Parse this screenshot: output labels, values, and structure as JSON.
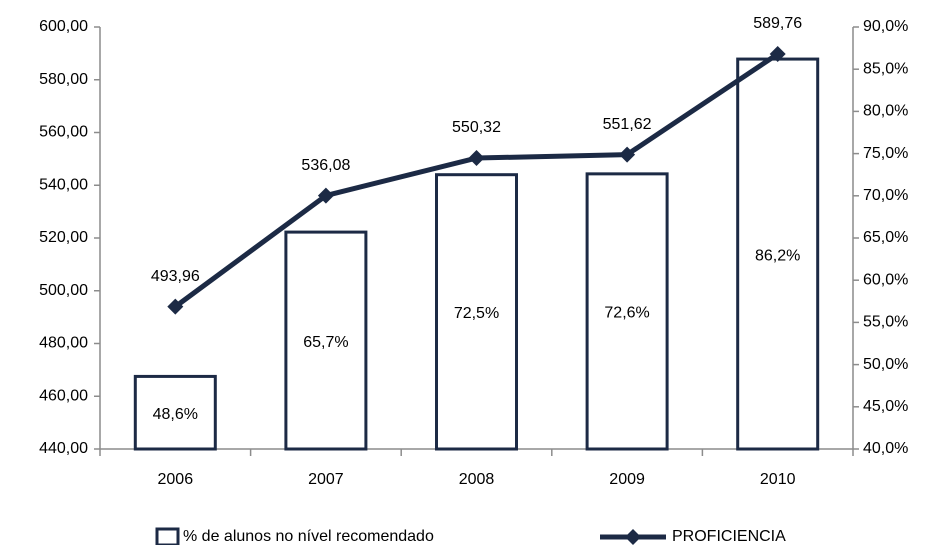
{
  "chart_data": {
    "type": "combo",
    "categories": [
      "2006",
      "2007",
      "2008",
      "2009",
      "2010"
    ],
    "series": [
      {
        "name": "% de alunos no nível recomendado",
        "type": "bar",
        "axis": "y2",
        "color": "#1c2a45",
        "values": [
          48.6,
          65.7,
          72.5,
          72.6,
          86.2
        ],
        "value_labels": [
          "48,6%",
          "65,7%",
          "72,5%",
          "72,6%",
          "86,2%"
        ]
      },
      {
        "name": "PROFICIENCIA",
        "type": "line",
        "axis": "y",
        "color": "#1c2a45",
        "values": [
          493.96,
          536.08,
          550.32,
          551.62,
          589.76
        ],
        "value_labels": [
          "493,96",
          "536,08",
          "550,32",
          "551,62",
          "589,76"
        ]
      }
    ],
    "ylim": [
      440,
      600
    ],
    "yticks": [
      {
        "value": 440,
        "label": "440,00"
      },
      {
        "value": 460,
        "label": "460,00"
      },
      {
        "value": 480,
        "label": "480,00"
      },
      {
        "value": 500,
        "label": "500,00"
      },
      {
        "value": 520,
        "label": "520,00"
      },
      {
        "value": 540,
        "label": "540,00"
      },
      {
        "value": 560,
        "label": "560,00"
      },
      {
        "value": 580,
        "label": "580,00"
      },
      {
        "value": 600,
        "label": "600,00"
      }
    ],
    "y2lim": [
      40,
      90
    ],
    "y2ticks": [
      {
        "value": 40,
        "label": "40,0%"
      },
      {
        "value": 45,
        "label": "45,0%"
      },
      {
        "value": 50,
        "label": "50,0%"
      },
      {
        "value": 55,
        "label": "55,0%"
      },
      {
        "value": 60,
        "label": "60,0%"
      },
      {
        "value": 65,
        "label": "65,0%"
      },
      {
        "value": 70,
        "label": "70,0%"
      },
      {
        "value": 75,
        "label": "75,0%"
      },
      {
        "value": 80,
        "label": "80,0%"
      },
      {
        "value": 85,
        "label": "85,0%"
      },
      {
        "value": 90,
        "label": "90,0%"
      }
    ],
    "legend": "bottom"
  }
}
